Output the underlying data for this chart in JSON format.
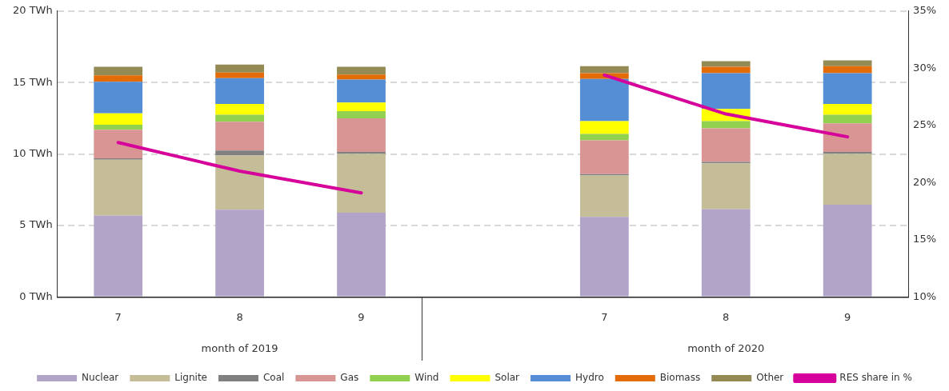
{
  "chart_data": {
    "type": "bar",
    "stacked": true,
    "categories": [
      "7",
      "8",
      "9",
      null,
      "7",
      "8",
      "9"
    ],
    "annotations": [
      "month of 2019",
      "month of 2020"
    ],
    "series": [
      {
        "name": "Nuclear",
        "color": "#b2a3c8",
        "values": [
          5.7,
          6.1,
          5.9,
          null,
          5.6,
          6.15,
          6.45
        ]
      },
      {
        "name": "Lignite",
        "color": "#c4bd97",
        "values": [
          3.9,
          3.8,
          4.1,
          null,
          2.9,
          3.2,
          3.55
        ]
      },
      {
        "name": "Coal",
        "color": "#808080",
        "values": [
          0.1,
          0.35,
          0.15,
          null,
          0.1,
          0.1,
          0.15
        ]
      },
      {
        "name": "Gas",
        "color": "#d99594",
        "values": [
          2.0,
          2.0,
          2.35,
          null,
          2.35,
          2.35,
          2.0
        ]
      },
      {
        "name": "Wind",
        "color": "#92d050",
        "values": [
          0.35,
          0.5,
          0.5,
          null,
          0.45,
          0.5,
          0.6
        ]
      },
      {
        "name": "Solar",
        "color": "#ffff00",
        "values": [
          0.8,
          0.75,
          0.6,
          null,
          0.9,
          0.85,
          0.75
        ]
      },
      {
        "name": "Hydro",
        "color": "#558ed5",
        "values": [
          2.2,
          1.8,
          1.6,
          null,
          2.95,
          2.5,
          2.15
        ]
      },
      {
        "name": "Biomass",
        "color": "#e36c09",
        "values": [
          0.45,
          0.4,
          0.35,
          null,
          0.4,
          0.45,
          0.5
        ]
      },
      {
        "name": "Other",
        "color": "#948a54",
        "values": [
          0.6,
          0.55,
          0.55,
          null,
          0.5,
          0.4,
          0.4
        ]
      },
      {
        "name": "RES share in %",
        "color": "#d6009b",
        "type": "line",
        "axis": "y2",
        "values": [
          23.5,
          21.0,
          19.1,
          null,
          29.4,
          26.0,
          24.0
        ]
      }
    ],
    "ylim": [
      0,
      20
    ],
    "yticks": [
      {
        "value": 0,
        "label": "0 TWh"
      },
      {
        "value": 5,
        "label": "5 TWh"
      },
      {
        "value": 10,
        "label": "10 TWh"
      },
      {
        "value": 15,
        "label": "15 TWh"
      },
      {
        "value": 20,
        "label": "20 TWh"
      }
    ],
    "y2lim": [
      10,
      35
    ],
    "y2ticks": [
      {
        "value": 10,
        "label": "10%"
      },
      {
        "value": 15,
        "label": "15%"
      },
      {
        "value": 20,
        "label": "20%"
      },
      {
        "value": 25,
        "label": "25%"
      },
      {
        "value": 30,
        "label": "30%"
      },
      {
        "value": 35,
        "label": "35%"
      }
    ],
    "grid": "y",
    "legend": "bottom",
    "marker": "none",
    "line_style": "solid"
  }
}
